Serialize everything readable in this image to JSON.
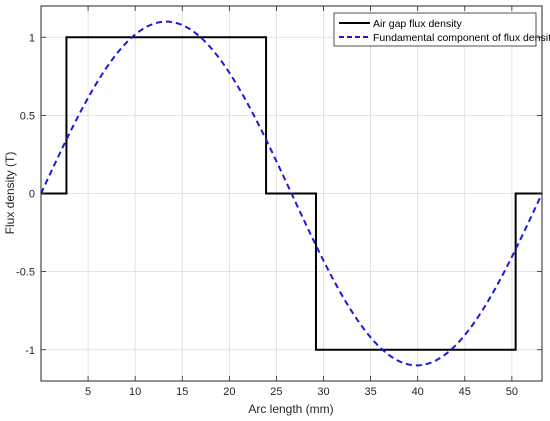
{
  "chart_data": {
    "type": "line",
    "title": "",
    "xlabel": "Arc length (mm)",
    "ylabel": "Flux density (T)",
    "xlim": [
      0,
      53.2
    ],
    "ylim": [
      -1.2,
      1.2
    ],
    "x_ticks": [
      5,
      10,
      15,
      20,
      25,
      30,
      35,
      40,
      45,
      50
    ],
    "y_ticks": [
      -1,
      -0.5,
      0,
      0.5,
      1
    ],
    "y_tick_labels": [
      "-1",
      "-0.5",
      "0",
      "0.5",
      "1"
    ],
    "grid": true,
    "legend_position": "top-right",
    "series": [
      {
        "name": "Air gap flux density",
        "style": "solid",
        "color": "#000000",
        "x": [
          0,
          2.7,
          2.7,
          23.9,
          23.9,
          29.2,
          29.2,
          50.4,
          50.4,
          53.2
        ],
        "y": [
          0,
          0,
          1,
          1,
          0,
          0,
          -1,
          -1,
          0,
          0
        ]
      },
      {
        "name": "Fundamental component of flux density",
        "style": "dashed",
        "color": "#1a1adb",
        "function": "amplitude * sin(2*pi*x/period)",
        "amplitude": 1.1,
        "period": 53.2
      }
    ]
  }
}
